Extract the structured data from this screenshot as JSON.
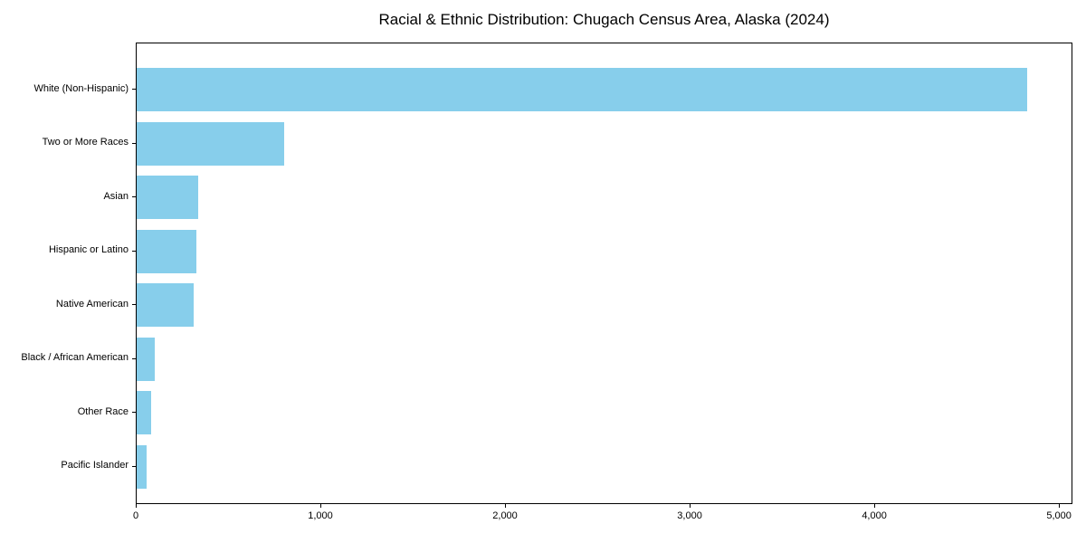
{
  "chart_data": {
    "type": "bar",
    "orientation": "horizontal",
    "title": "Racial & Ethnic Distribution: Chugach Census Area, Alaska (2024)",
    "categories": [
      "White (Non-Hispanic)",
      "Two or More Races",
      "Asian",
      "Hispanic or Latino",
      "Native American",
      "Black / African American",
      "Other Race",
      "Pacific Islander"
    ],
    "values": [
      4830,
      800,
      335,
      325,
      310,
      100,
      80,
      55
    ],
    "xlabel": "",
    "ylabel": "",
    "xlim": [
      0,
      5073
    ],
    "xticks": [
      0,
      1000,
      2000,
      3000,
      4000,
      5000
    ],
    "xtick_labels": [
      "0",
      "1,000",
      "2,000",
      "3,000",
      "4,000",
      "5,000"
    ],
    "bar_color": "#87CEEB",
    "axis_color": "#000000",
    "grid": false,
    "legend": null
  }
}
